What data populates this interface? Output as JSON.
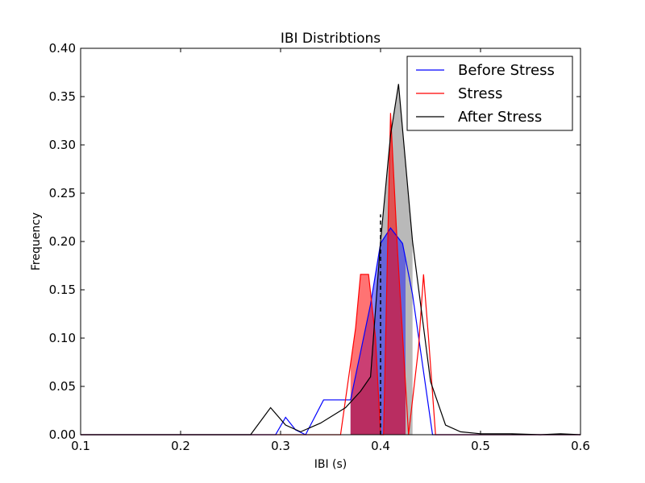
{
  "chart_data": {
    "type": "line",
    "title": "IBI Distribtions",
    "xlabel": "IBI (s)",
    "ylabel": "Frequency",
    "xlim": [
      0.1,
      0.6
    ],
    "ylim": [
      0.0,
      0.4
    ],
    "xticks": [
      "0.1",
      "0.2",
      "0.3",
      "0.4",
      "0.5",
      "0.6"
    ],
    "xtick_values": [
      0.1,
      0.2,
      0.3,
      0.4,
      0.5,
      0.6
    ],
    "yticks": [
      "0.00",
      "0.05",
      "0.10",
      "0.15",
      "0.20",
      "0.25",
      "0.30",
      "0.35",
      "0.40"
    ],
    "ytick_values": [
      0.0,
      0.05,
      0.1,
      0.15,
      0.2,
      0.25,
      0.3,
      0.35,
      0.4
    ],
    "grid": false,
    "legend_position": "top-right",
    "series": [
      {
        "name": "Before Stress",
        "color": "#0000ff",
        "fill_color": "#0000ff",
        "fill_range": [
          0.37,
          0.425
        ],
        "x": [
          0.1,
          0.295,
          0.305,
          0.315,
          0.325,
          0.343,
          0.37,
          0.39,
          0.4,
          0.41,
          0.422,
          0.432,
          0.452,
          0.465,
          0.6
        ],
        "y": [
          0.0,
          0.0,
          0.018,
          0.005,
          0.0,
          0.036,
          0.036,
          0.135,
          0.198,
          0.214,
          0.198,
          0.145,
          0.0,
          0.0,
          0.0
        ]
      },
      {
        "name": "Stress",
        "color": "#ff0000",
        "fill_color": "#ff0000",
        "fill_range": [
          0.37,
          0.425
        ],
        "x": [
          0.1,
          0.36,
          0.375,
          0.38,
          0.388,
          0.395,
          0.4,
          0.403,
          0.41,
          0.417,
          0.428,
          0.438,
          0.443,
          0.448,
          0.455,
          0.6
        ],
        "y": [
          0.0,
          0.0,
          0.11,
          0.166,
          0.166,
          0.1,
          0.0,
          0.0,
          0.333,
          0.19,
          0.0,
          0.09,
          0.166,
          0.1,
          0.0,
          0.0
        ]
      },
      {
        "name": "After Stress",
        "color": "#000000",
        "fill_color": "#808080",
        "fill_range": [
          0.37,
          0.432
        ],
        "x": [
          0.1,
          0.27,
          0.29,
          0.305,
          0.32,
          0.34,
          0.365,
          0.38,
          0.39,
          0.4,
          0.41,
          0.418,
          0.432,
          0.45,
          0.465,
          0.48,
          0.5,
          0.53,
          0.56,
          0.58,
          0.6
        ],
        "y": [
          0.0,
          0.0,
          0.028,
          0.01,
          0.003,
          0.012,
          0.028,
          0.045,
          0.06,
          0.2,
          0.31,
          0.363,
          0.2,
          0.055,
          0.01,
          0.003,
          0.001,
          0.001,
          0.0,
          0.001,
          0.0
        ]
      }
    ],
    "reference_lines": [
      {
        "x": 0.4,
        "y_top": 0.228,
        "color": "#000000",
        "style": "dashed"
      }
    ]
  }
}
